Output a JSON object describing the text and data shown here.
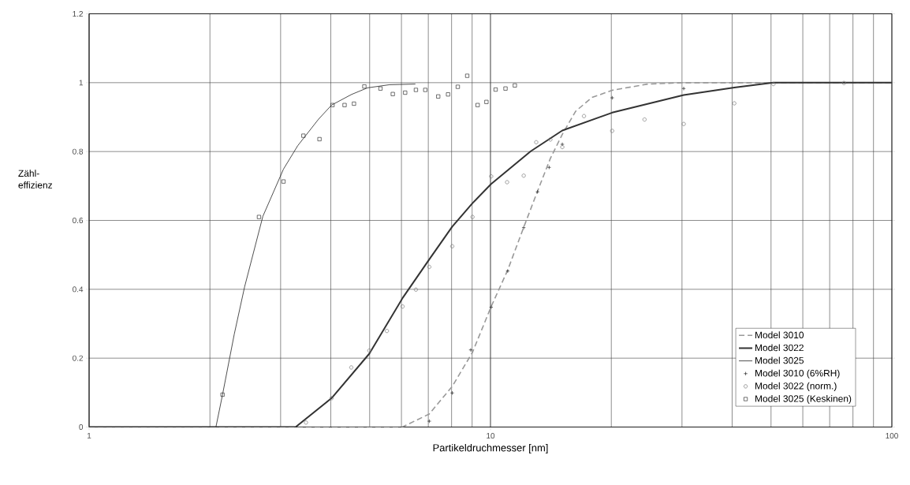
{
  "chart_data": {
    "type": "line",
    "xlabel": "Partikeldruchmesser [nm]",
    "ylabel": "Zähl-effizienz",
    "log": "x",
    "xlim": [
      1,
      100
    ],
    "xticks": [
      1,
      10,
      100
    ],
    "ylim": [
      0,
      1.2
    ],
    "yticks": [
      0,
      0.2,
      0.4,
      0.6,
      0.8,
      1,
      1.2
    ],
    "grid": true,
    "legend": "bottom right",
    "series": [
      {
        "name": "Model 3010",
        "line_style": "dashed",
        "marker": "none",
        "color": "#999999",
        "x": [
          1,
          6.03,
          7.04,
          8.03,
          9.02,
          10.04,
          11.04,
          12.1,
          13.1,
          14.1,
          15.1,
          16.3,
          17.9,
          20.1,
          24.7,
          30.3,
          100
        ],
        "values": [
          0,
          0,
          0.038,
          0.118,
          0.217,
          0.35,
          0.456,
          0.58,
          0.685,
          0.78,
          0.85,
          0.917,
          0.957,
          0.978,
          0.996,
          1,
          1
        ]
      },
      {
        "name": "Model 3022",
        "line_style": "solid",
        "marker": "none",
        "color": "#333333",
        "x": [
          1,
          3.27,
          4.02,
          4.99,
          6.05,
          7.04,
          8.03,
          9.02,
          10.04,
          12.6,
          15.1,
          20.1,
          30.3,
          40.5,
          50.7,
          100
        ],
        "values": [
          0,
          0,
          0.084,
          0.213,
          0.376,
          0.487,
          0.582,
          0.65,
          0.706,
          0.801,
          0.861,
          0.913,
          0.964,
          0.986,
          1,
          1
        ]
      },
      {
        "name": "Model 3025",
        "line_style": "solid",
        "marker": "none",
        "color": "#222222",
        "x": [
          1,
          2.07,
          2.15,
          2.3,
          2.44,
          2.71,
          3.05,
          3.31,
          3.73,
          4.02,
          4.51,
          4.94,
          5.6,
          6.5
        ],
        "values": [
          0,
          0,
          0.094,
          0.27,
          0.407,
          0.612,
          0.749,
          0.817,
          0.894,
          0.935,
          0.966,
          0.985,
          0.994,
          0.996
        ]
      },
      {
        "name": "Model 3010 (6%RH)",
        "type": "scatter",
        "marker": "cross",
        "color": "#222222",
        "x": [
          7.04,
          8.03,
          8.93,
          10.04,
          11.04,
          12.1,
          13.1,
          14.0,
          15.1,
          20.1,
          30.3
        ],
        "values": [
          0.017,
          0.099,
          0.224,
          0.348,
          0.453,
          0.579,
          0.683,
          0.754,
          0.821,
          0.956,
          0.983
        ]
      },
      {
        "name": "Model 3022 (norm.)",
        "type": "scatter",
        "marker": "circle",
        "color": "#777777",
        "x": [
          3.47,
          4.02,
          4.5,
          4.99,
          5.52,
          6.04,
          6.52,
          7.04,
          8.03,
          9.02,
          10.04,
          11.0,
          12.1,
          13.0,
          14.1,
          15.1,
          17.1,
          20.1,
          24.2,
          30.3,
          40.5,
          50.7,
          76.0
        ],
        "values": [
          0.013,
          0.084,
          0.173,
          0.222,
          0.279,
          0.35,
          0.399,
          0.465,
          0.525,
          0.61,
          0.728,
          0.711,
          0.73,
          0.827,
          0.835,
          0.813,
          0.903,
          0.86,
          0.893,
          0.88,
          0.94,
          0.996,
          0.999
        ]
      },
      {
        "name": "Model 3025 (Keskinen)",
        "type": "scatter",
        "marker": "square",
        "color": "#333333",
        "x": [
          2.15,
          2.65,
          3.05,
          3.42,
          3.75,
          4.04,
          4.33,
          4.57,
          4.85,
          5.32,
          5.71,
          6.13,
          6.52,
          6.88,
          7.41,
          7.84,
          8.29,
          8.75,
          9.29,
          9.77,
          10.3,
          10.9,
          11.5
        ],
        "values": [
          0.094,
          0.61,
          0.713,
          0.846,
          0.836,
          0.935,
          0.935,
          0.939,
          0.989,
          0.983,
          0.967,
          0.971,
          0.979,
          0.979,
          0.96,
          0.966,
          0.988,
          1.02,
          0.935,
          0.944,
          0.98,
          0.983,
          0.992
        ]
      }
    ]
  }
}
